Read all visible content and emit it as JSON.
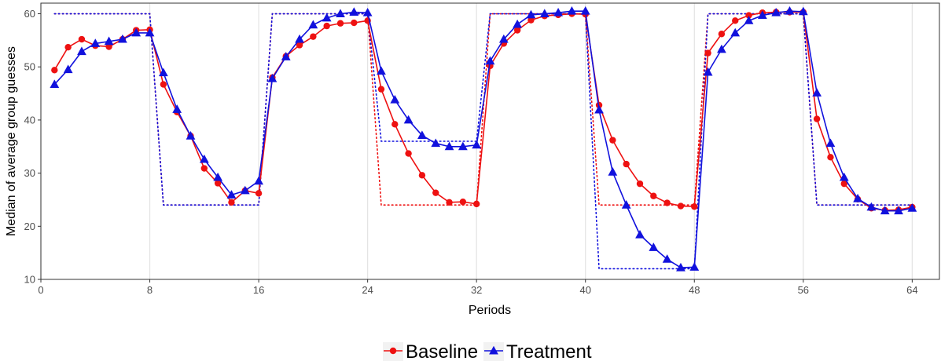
{
  "chart_data": {
    "type": "line",
    "xlabel": "Periods",
    "ylabel": "Median of average group guesses",
    "xlim": [
      0,
      66
    ],
    "ylim": [
      10,
      62
    ],
    "x_ticks": [
      0,
      8,
      16,
      24,
      32,
      40,
      48,
      56,
      64
    ],
    "y_ticks": [
      10,
      20,
      30,
      40,
      50,
      60
    ],
    "grid": "vertical-only",
    "legend": {
      "position": "bottom",
      "entries": [
        "Baseline",
        "Treatment"
      ]
    },
    "colors": {
      "Baseline": "#ee1111",
      "Treatment": "#1111dd"
    },
    "series": [
      {
        "name": "Baseline",
        "marker": "circle",
        "points": [
          [
            1,
            49.4
          ],
          [
            2,
            53.7
          ],
          [
            3,
            55.2
          ],
          [
            4,
            54
          ],
          [
            5,
            53.8
          ],
          [
            6,
            55.2
          ],
          [
            7,
            56.9
          ],
          [
            8,
            57
          ],
          [
            9,
            46.7
          ],
          [
            10,
            41.5
          ],
          [
            11,
            37
          ],
          [
            12,
            30.9
          ],
          [
            13,
            28.1
          ],
          [
            14,
            24.5
          ],
          [
            15,
            26.7
          ],
          [
            16,
            26.2
          ],
          [
            17,
            48
          ],
          [
            18,
            52
          ],
          [
            19,
            54.1
          ],
          [
            20,
            55.7
          ],
          [
            21,
            57.7
          ],
          [
            22,
            58.2
          ],
          [
            23,
            58.3
          ],
          [
            24,
            58.7
          ],
          [
            25,
            45.8
          ],
          [
            26,
            39.2
          ],
          [
            27,
            33.7
          ],
          [
            28,
            29.6
          ],
          [
            29,
            26.3
          ],
          [
            30,
            24.5
          ],
          [
            31,
            24.6
          ],
          [
            32,
            24.2
          ],
          [
            33,
            50.2
          ],
          [
            34,
            54.4
          ],
          [
            35,
            56.9
          ],
          [
            36,
            58.8
          ],
          [
            37,
            59.6
          ],
          [
            38,
            59.8
          ],
          [
            39,
            60
          ],
          [
            40,
            59.9
          ],
          [
            41,
            42.8
          ],
          [
            42,
            36.2
          ],
          [
            43,
            31.7
          ],
          [
            44,
            28
          ],
          [
            45,
            25.7
          ],
          [
            46,
            24.4
          ],
          [
            47,
            23.8
          ],
          [
            48,
            23.7
          ],
          [
            49,
            52.6
          ],
          [
            50,
            56.2
          ],
          [
            51,
            58.7
          ],
          [
            52,
            59.7
          ],
          [
            53,
            60.2
          ],
          [
            54,
            60.3
          ],
          [
            55,
            60.3
          ],
          [
            56,
            60.3
          ],
          [
            57,
            40.2
          ],
          [
            58,
            33
          ],
          [
            59,
            28
          ],
          [
            60,
            25.1
          ],
          [
            61,
            23.4
          ],
          [
            62,
            23
          ],
          [
            63,
            23.1
          ],
          [
            64,
            23.6
          ]
        ]
      },
      {
        "name": "Treatment",
        "marker": "triangle",
        "points": [
          [
            1,
            46.7
          ],
          [
            2,
            49.5
          ],
          [
            3,
            52.9
          ],
          [
            4,
            54.4
          ],
          [
            5,
            54.8
          ],
          [
            6,
            55.2
          ],
          [
            7,
            56.4
          ],
          [
            8,
            56.4
          ],
          [
            9,
            48.9
          ],
          [
            10,
            42
          ],
          [
            11,
            37
          ],
          [
            12,
            32.6
          ],
          [
            13,
            29.2
          ],
          [
            14,
            25.9
          ],
          [
            15,
            26.7
          ],
          [
            16,
            28.5
          ],
          [
            17,
            47.8
          ],
          [
            18,
            51.9
          ],
          [
            19,
            55.2
          ],
          [
            20,
            57.9
          ],
          [
            21,
            59.2
          ],
          [
            22,
            60
          ],
          [
            23,
            60.3
          ],
          [
            24,
            60.2
          ],
          [
            25,
            49.2
          ],
          [
            26,
            43.8
          ],
          [
            27,
            40
          ],
          [
            28,
            37.1
          ],
          [
            29,
            35.6
          ],
          [
            30,
            35
          ],
          [
            31,
            35
          ],
          [
            32,
            35.3
          ],
          [
            33,
            51.1
          ],
          [
            34,
            55.2
          ],
          [
            35,
            58
          ],
          [
            36,
            59.8
          ],
          [
            37,
            60
          ],
          [
            38,
            60.2
          ],
          [
            39,
            60.5
          ],
          [
            40,
            60.5
          ],
          [
            41,
            41.9
          ],
          [
            42,
            30.2
          ],
          [
            43,
            24
          ],
          [
            44,
            18.4
          ],
          [
            45,
            16
          ],
          [
            46,
            13.8
          ],
          [
            47,
            12.2
          ],
          [
            48,
            12.3
          ],
          [
            49,
            49
          ],
          [
            50,
            53.3
          ],
          [
            51,
            56.4
          ],
          [
            52,
            58.7
          ],
          [
            53,
            59.7
          ],
          [
            54,
            60.2
          ],
          [
            55,
            60.5
          ],
          [
            56,
            60.4
          ],
          [
            57,
            45.1
          ],
          [
            58,
            35.6
          ],
          [
            59,
            29.2
          ],
          [
            60,
            25.2
          ],
          [
            61,
            23.6
          ],
          [
            62,
            22.9
          ],
          [
            63,
            22.9
          ],
          [
            64,
            23.4
          ]
        ]
      }
    ],
    "reference_lines": [
      {
        "name": "Baseline equilibrium",
        "color": "#ee1111",
        "style": "dotted",
        "points": [
          [
            1,
            60
          ],
          [
            8,
            60
          ],
          [
            9,
            24
          ],
          [
            16,
            24
          ],
          [
            17,
            60
          ],
          [
            24,
            60
          ],
          [
            25,
            24
          ],
          [
            32,
            24
          ],
          [
            33,
            60
          ],
          [
            40,
            60
          ],
          [
            41,
            24
          ],
          [
            48,
            24
          ],
          [
            49,
            60
          ],
          [
            56,
            60
          ],
          [
            57,
            24
          ],
          [
            64,
            24
          ]
        ]
      },
      {
        "name": "Treatment equilibrium",
        "color": "#1111dd",
        "style": "dotted",
        "points": [
          [
            1,
            60
          ],
          [
            8,
            60
          ],
          [
            9,
            24
          ],
          [
            16,
            24
          ],
          [
            17,
            60
          ],
          [
            24,
            60
          ],
          [
            25,
            36
          ],
          [
            32,
            36
          ],
          [
            33,
            60
          ],
          [
            40,
            60
          ],
          [
            41,
            12
          ],
          [
            48,
            12
          ],
          [
            49,
            60
          ],
          [
            56,
            60
          ],
          [
            57,
            24
          ],
          [
            64,
            24
          ]
        ]
      }
    ]
  }
}
